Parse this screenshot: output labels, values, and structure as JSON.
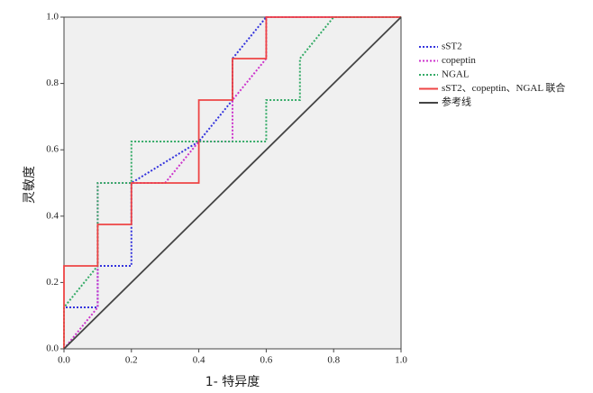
{
  "chart_data": {
    "type": "line",
    "xlabel": "1- 特异度",
    "ylabel": "灵敏度",
    "xlim": [
      0,
      1
    ],
    "ylim": [
      0,
      1
    ],
    "xticks": [
      {
        "value": 0,
        "label": "0.0"
      },
      0.2,
      0.4,
      0.6,
      0.8,
      {
        "value": 1,
        "label": "1.0"
      }
    ],
    "yticks": [
      {
        "value": 0,
        "label": "0.0"
      },
      0.2,
      0.4,
      0.6,
      0.8,
      {
        "value": 1,
        "label": "1.0"
      }
    ],
    "background": "#f0f0f0",
    "legend": "right",
    "series": [
      {
        "name": "sST2",
        "color": "#3333dd",
        "dash": true,
        "x": [
          0,
          0,
          0.1,
          0.1,
          0.2,
          0.2,
          0.4,
          0.5,
          0.5,
          0.6,
          1
        ],
        "values": [
          0,
          0.125,
          0.125,
          0.25,
          0.25,
          0.5,
          0.625,
          0.75,
          0.875,
          1,
          1
        ]
      },
      {
        "name": "copeptin",
        "color": "#cc33cc",
        "dash": true,
        "x": [
          0,
          0.1,
          0.1,
          0.3,
          0.4,
          0.5,
          0.5,
          0.6,
          0.6,
          1
        ],
        "values": [
          0,
          0.125,
          0.5,
          0.5,
          0.625,
          0.625,
          0.75,
          0.875,
          1,
          1
        ]
      },
      {
        "name": "NGAL",
        "color": "#33aa66",
        "dash": true,
        "x": [
          0,
          0,
          0.1,
          0.1,
          0.2,
          0.2,
          0.6,
          0.6,
          0.7,
          0.7,
          0.8,
          1
        ],
        "values": [
          0,
          0.125,
          0.25,
          0.5,
          0.5,
          0.625,
          0.625,
          0.75,
          0.75,
          0.875,
          1,
          1
        ]
      },
      {
        "name": "sST2、copeptin、NGAL 联合",
        "color": "#ee4444",
        "dash": false,
        "x": [
          0,
          0,
          0.1,
          0.1,
          0.2,
          0.2,
          0.4,
          0.4,
          0.5,
          0.5,
          0.6,
          0.6,
          1
        ],
        "values": [
          0,
          0.25,
          0.25,
          0.375,
          0.375,
          0.5,
          0.5,
          0.75,
          0.75,
          0.875,
          0.875,
          1,
          1
        ]
      },
      {
        "name": "参考线",
        "color": "#444444",
        "dash": false,
        "x": [
          0,
          1
        ],
        "values": [
          0,
          1
        ]
      }
    ]
  }
}
